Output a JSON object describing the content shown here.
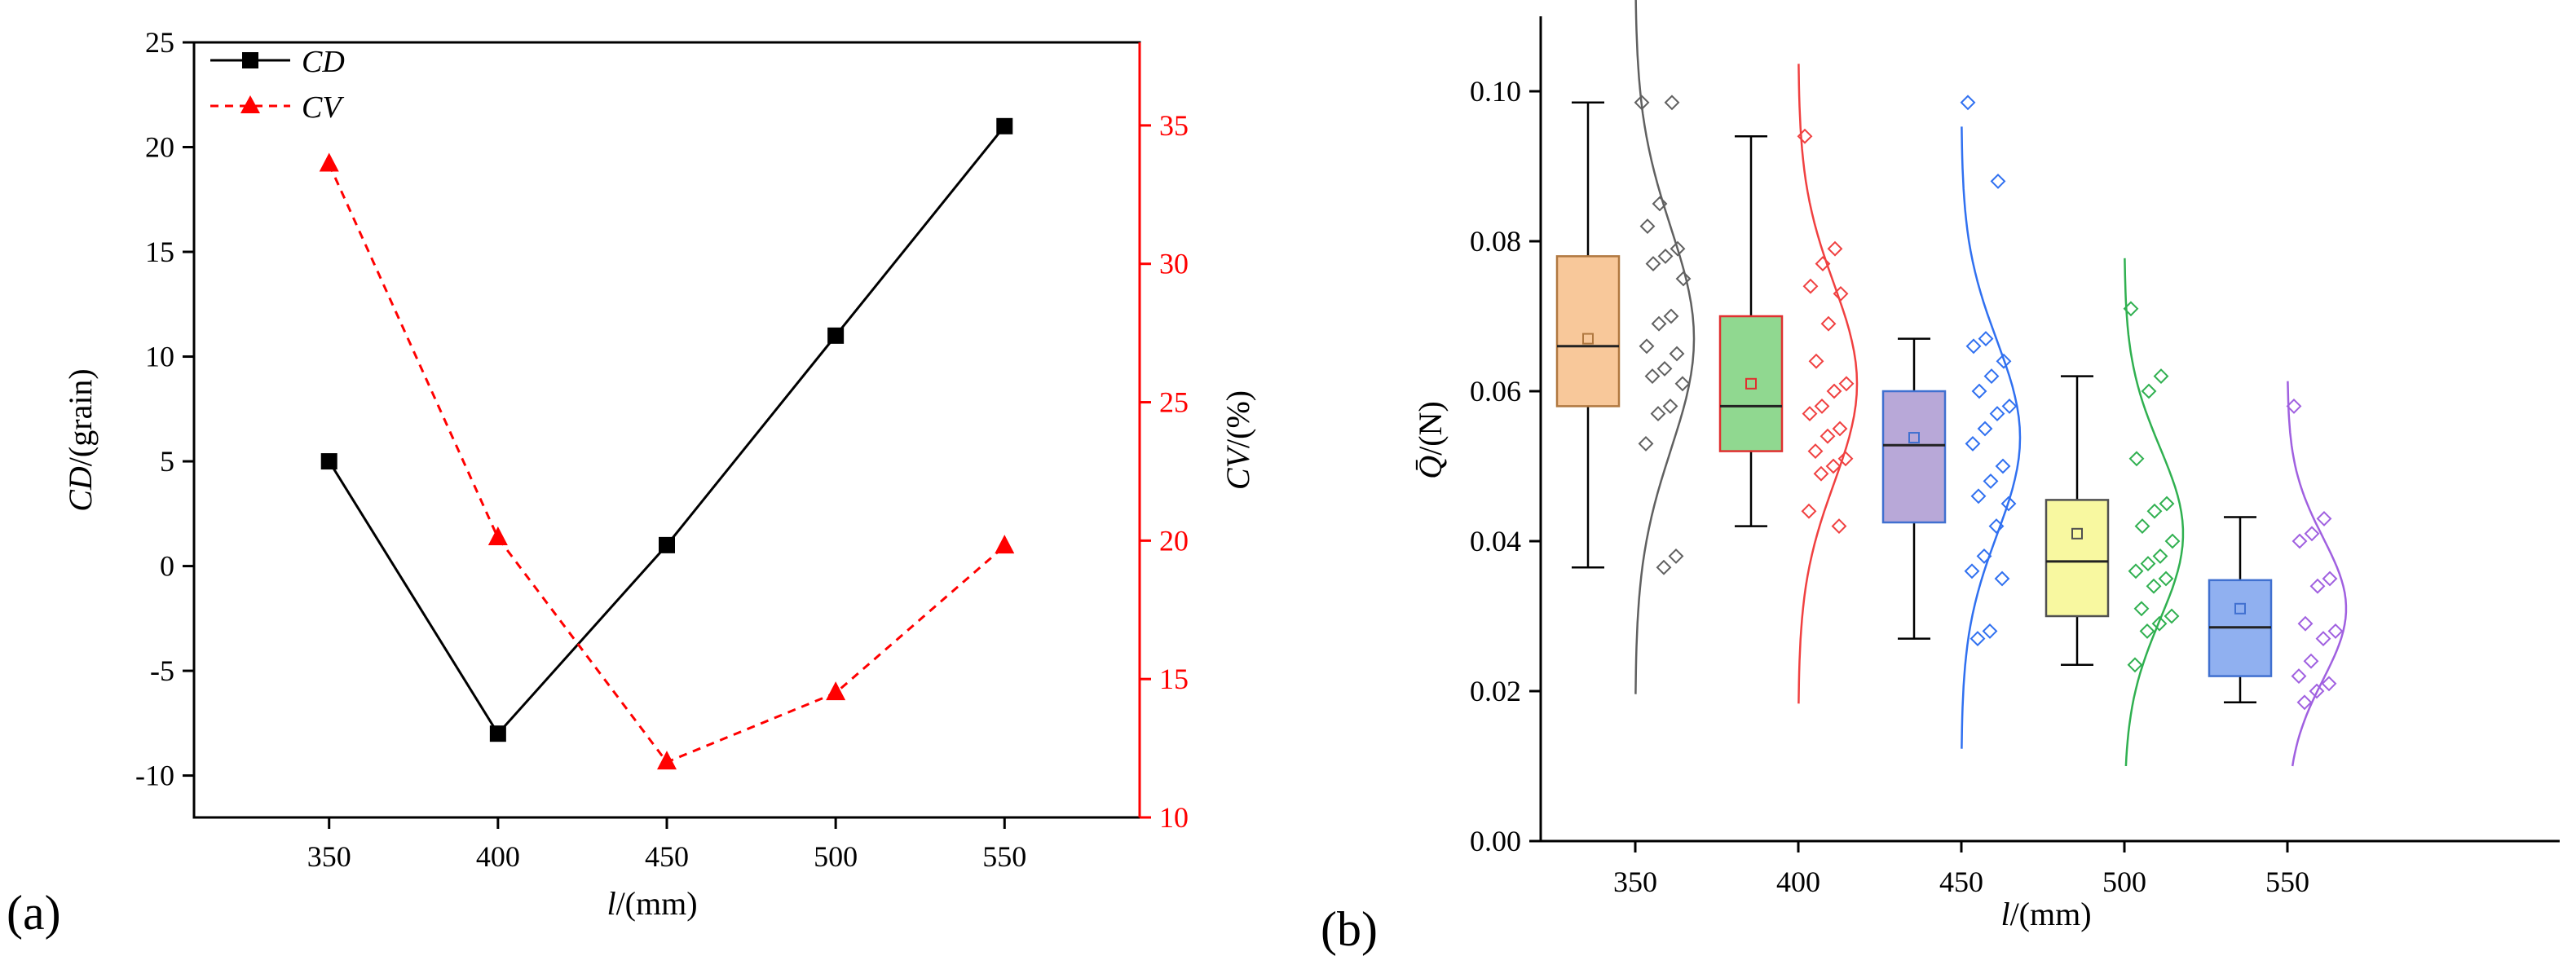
{
  "chart_data": [
    {
      "type": "line",
      "panel_label": "(a)",
      "x": [
        350,
        400,
        450,
        500,
        550
      ],
      "xlim": [
        310,
        590
      ],
      "x_ticks": [
        "350",
        "400",
        "450",
        "500",
        "550"
      ],
      "x_label_italic": "l",
      "x_label_rest": "/(mm)",
      "y_left": {
        "label_italic": "CD",
        "label_rest": "/(grain)",
        "lim": [
          -12,
          25
        ],
        "ticks": [
          "-10",
          "-5",
          "0",
          "5",
          "10",
          "15",
          "20",
          "25"
        ]
      },
      "y_right": {
        "label_italic": "CV",
        "label_rest": "/(%)",
        "lim": [
          10,
          38
        ],
        "ticks": [
          "10",
          "15",
          "20",
          "25",
          "30",
          "35"
        ]
      },
      "series": [
        {
          "name": "CD",
          "axis": "left",
          "color": "#000000",
          "marker": "square",
          "dash": false,
          "values": [
            5,
            -8,
            1,
            11,
            21
          ]
        },
        {
          "name": "CV",
          "axis": "right",
          "color": "#ff0000",
          "marker": "triangle",
          "dash": true,
          "values": [
            33.6,
            20.1,
            12.0,
            14.5,
            19.8
          ]
        }
      ]
    },
    {
      "type": "box",
      "panel_label": "(b)",
      "categories": [
        "350",
        "400",
        "450",
        "500",
        "550"
      ],
      "ylim": [
        0,
        0.11
      ],
      "y_ticks": [
        "0.00",
        "0.02",
        "0.04",
        "0.06",
        "0.08",
        "0.10"
      ],
      "x_label_italic": "l",
      "x_label_rest": "/(mm)",
      "y_label_italic": "Q̄",
      "y_label_rest": "/(N)",
      "boxes": [
        {
          "category": "350",
          "fill": "#f8c89a",
          "edge": "#b07840",
          "whisker_low": 0.0365,
          "q1": 0.058,
          "median": 0.066,
          "q3": 0.078,
          "whisker_high": 0.0985,
          "mean": 0.067,
          "points": [
            0.0985,
            0.0985,
            0.085,
            0.082,
            0.079,
            0.078,
            0.077,
            0.075,
            0.07,
            0.069,
            0.066,
            0.065,
            0.063,
            0.062,
            0.061,
            0.058,
            0.057,
            0.053,
            0.038,
            0.0365
          ]
        },
        {
          "category": "400",
          "fill": "#90d890",
          "edge": "#e03030",
          "whisker_low": 0.042,
          "q1": 0.052,
          "median": 0.058,
          "q3": 0.07,
          "whisker_high": 0.094,
          "mean": 0.061,
          "points": [
            0.094,
            0.079,
            0.077,
            0.074,
            0.073,
            0.069,
            0.064,
            0.061,
            0.06,
            0.058,
            0.057,
            0.055,
            0.054,
            0.052,
            0.051,
            0.05,
            0.049,
            0.044,
            0.042
          ]
        },
        {
          "category": "450",
          "fill": "#b8a8d8",
          "edge": "#4070d0",
          "whisker_low": 0.027,
          "q1": 0.0425,
          "median": 0.0528,
          "q3": 0.06,
          "whisker_high": 0.067,
          "mean": 0.0538,
          "points": [
            0.0985,
            0.088,
            0.067,
            0.066,
            0.064,
            0.062,
            0.06,
            0.058,
            0.057,
            0.055,
            0.053,
            0.05,
            0.048,
            0.046,
            0.045,
            0.042,
            0.038,
            0.036,
            0.035,
            0.028,
            0.027
          ]
        },
        {
          "category": "500",
          "fill": "#f8f8a0",
          "edge": "#505050",
          "whisker_low": 0.0235,
          "q1": 0.03,
          "median": 0.0373,
          "q3": 0.0455,
          "whisker_high": 0.062,
          "mean": 0.041,
          "points": [
            0.071,
            0.062,
            0.06,
            0.051,
            0.045,
            0.044,
            0.042,
            0.04,
            0.038,
            0.037,
            0.036,
            0.035,
            0.034,
            0.031,
            0.03,
            0.029,
            0.028,
            0.0235
          ]
        },
        {
          "category": "550",
          "fill": "#90b0f0",
          "edge": "#4070d0",
          "whisker_low": 0.0185,
          "q1": 0.022,
          "median": 0.0285,
          "q3": 0.0348,
          "whisker_high": 0.0432,
          "mean": 0.031,
          "points": [
            0.058,
            0.043,
            0.041,
            0.04,
            0.035,
            0.034,
            0.029,
            0.028,
            0.027,
            0.024,
            0.022,
            0.021,
            0.02,
            0.0185
          ]
        }
      ],
      "dist_colors": [
        "#606060",
        "#f04040",
        "#3070f0",
        "#30b050",
        "#a060e0"
      ]
    }
  ]
}
